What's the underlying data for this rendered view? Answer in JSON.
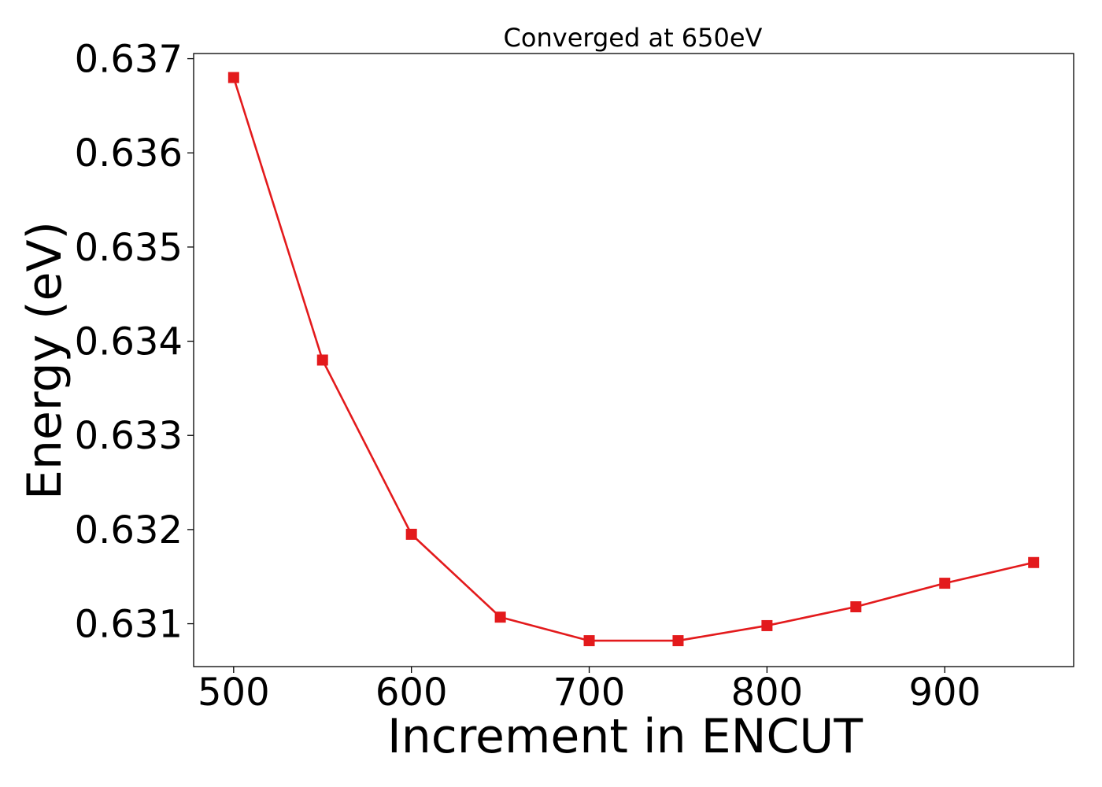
{
  "chart_data": {
    "type": "line",
    "title": "Converged at 650eV",
    "xlabel": "Increment in ENCUT",
    "ylabel": "Energy (eV)",
    "x": [
      500,
      550,
      600,
      650,
      700,
      750,
      800,
      850,
      900,
      950
    ],
    "series": [
      {
        "values": [
          0.6368,
          0.6338,
          0.63195,
          0.63107,
          0.63082,
          0.63082,
          0.63098,
          0.63118,
          0.63143,
          0.63165
        ],
        "color": "#e31a1c",
        "marker": "square"
      }
    ],
    "xlim": [
      477.5,
      972.5
    ],
    "ylim": [
      0.630545,
      0.637055
    ],
    "xticks": [
      500,
      600,
      700,
      800,
      900
    ],
    "yticks": [
      0.631,
      0.632,
      0.633,
      0.634,
      0.635,
      0.636,
      0.637
    ],
    "xtick_labels": [
      "500",
      "600",
      "700",
      "800",
      "900"
    ],
    "ytick_labels": [
      "0.631",
      "0.632",
      "0.633",
      "0.634",
      "0.635",
      "0.636",
      "0.637"
    ],
    "grid": false,
    "legend": "none"
  }
}
